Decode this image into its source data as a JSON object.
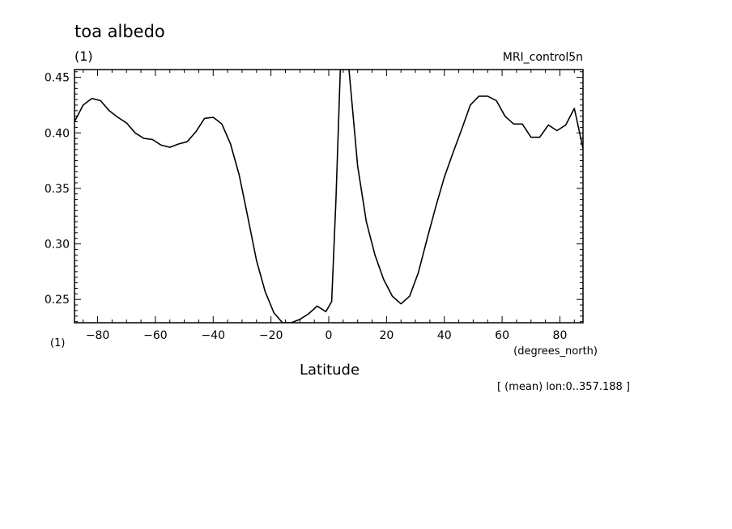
{
  "chart_data": {
    "type": "line",
    "title": "toa albedo",
    "units_label": "(1)",
    "dataset_label": "MRI_control5n",
    "ylabel_bottom": "(1)",
    "xlabel": "Latitude",
    "xunits": "(degrees_north)",
    "note": "[ (mean) lon:0..357.188 ]",
    "xlim": [
      -88,
      88
    ],
    "ylim": [
      0.229,
      0.457
    ],
    "x_ticks": [
      -80,
      -60,
      -40,
      -20,
      0,
      20,
      40,
      60,
      80
    ],
    "x_tick_labels": [
      "−80",
      "−60",
      "−40",
      "−20",
      "0",
      "20",
      "40",
      "60",
      "80"
    ],
    "y_ticks": [
      0.25,
      0.3,
      0.35,
      0.4,
      0.45
    ],
    "y_tick_labels": [
      "0.25",
      "0.30",
      "0.35",
      "0.40",
      "0.45"
    ],
    "grid": false,
    "series": [
      {
        "x": [
          -88,
          -85,
          -82,
          -79,
          -76,
          -73,
          -70,
          -67,
          -64,
          -61,
          -58,
          -55,
          -52,
          -49,
          -46,
          -43,
          -40,
          -37,
          -34,
          -31,
          -28,
          -25,
          -22,
          -19,
          -16,
          -13,
          -10,
          -7,
          -4,
          -1,
          1,
          2.5,
          4,
          7,
          10,
          13,
          16,
          19,
          22,
          25,
          28,
          31,
          34,
          37,
          40,
          43,
          46,
          49,
          52,
          55,
          58,
          61,
          64,
          67,
          70,
          73,
          76,
          79,
          82,
          85,
          88
        ],
        "y": [
          0.41,
          0.425,
          0.431,
          0.429,
          0.42,
          0.414,
          0.409,
          0.4,
          0.395,
          0.394,
          0.389,
          0.387,
          0.39,
          0.392,
          0.401,
          0.413,
          0.414,
          0.408,
          0.39,
          0.362,
          0.324,
          0.285,
          0.257,
          0.238,
          0.229,
          0.229,
          0.232,
          0.237,
          0.244,
          0.239,
          0.248,
          0.34,
          0.457,
          0.457,
          0.37,
          0.32,
          0.29,
          0.268,
          0.253,
          0.246,
          0.253,
          0.274,
          0.304,
          0.333,
          0.36,
          0.382,
          0.403,
          0.425,
          0.433,
          0.433,
          0.429,
          0.415,
          0.408,
          0.408,
          0.396,
          0.396,
          0.407,
          0.402,
          0.407,
          0.422,
          0.386
        ]
      }
    ]
  }
}
